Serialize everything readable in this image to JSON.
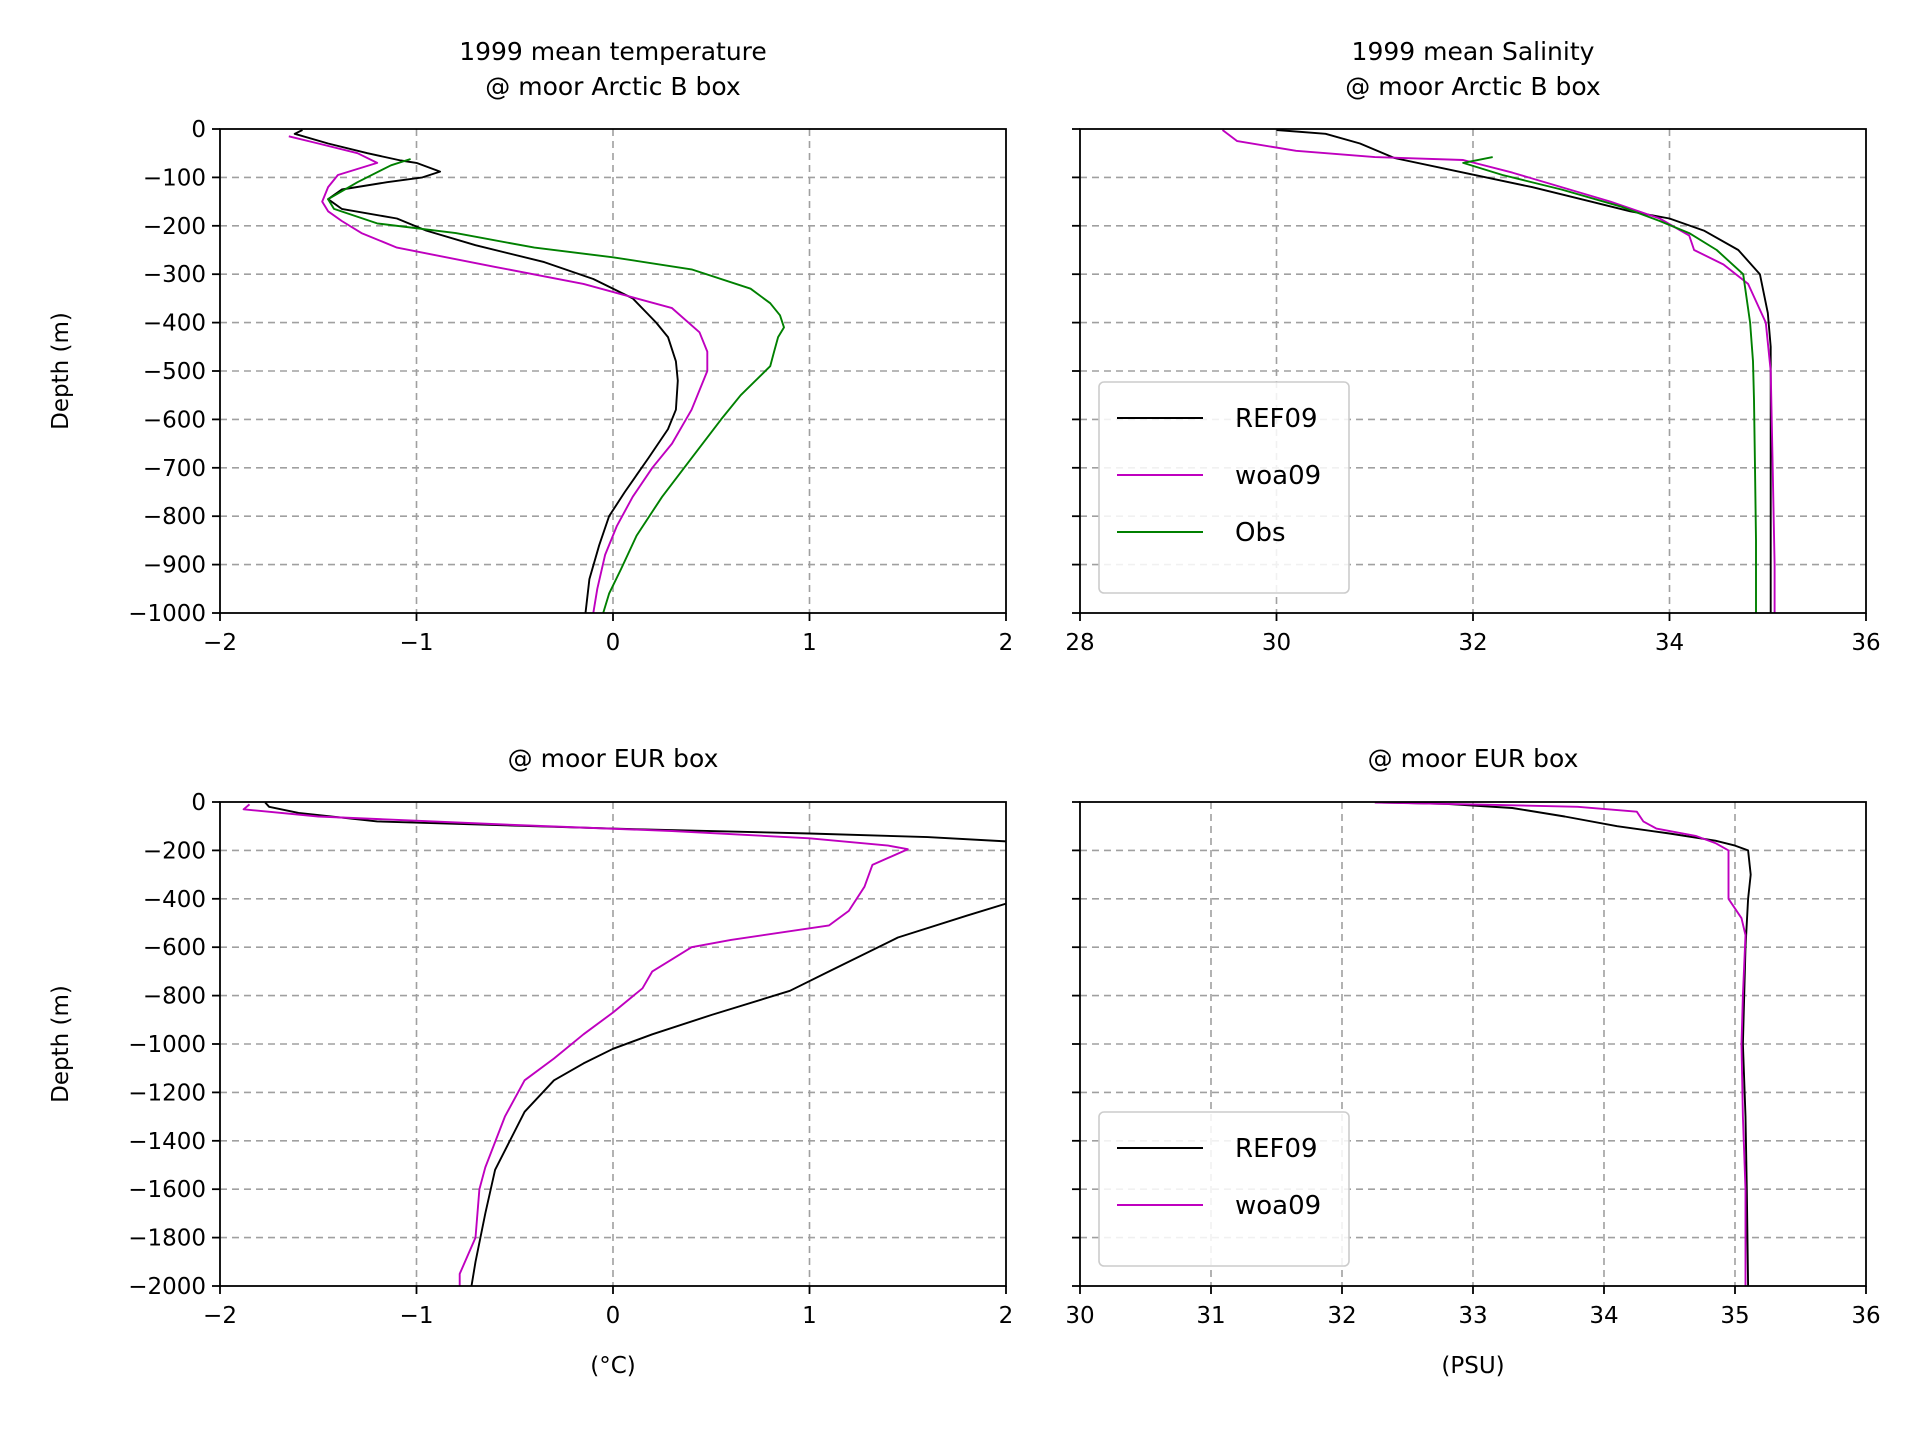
{
  "colors": {
    "REF09": "#000000",
    "woa09": "#bf00bf",
    "Obs": "#008000"
  },
  "chart_data": [
    {
      "id": "tl",
      "type": "line",
      "title_lines": [
        "1999 mean temperature",
        "@ moor Arctic B box"
      ],
      "xlabel": "",
      "ylabel": "Depth (m)",
      "xlim": [
        -2,
        2
      ],
      "ylim": [
        -1000,
        0
      ],
      "xticks": [
        -2,
        -1,
        0,
        1,
        2
      ],
      "yticks": [
        0,
        -100,
        -200,
        -300,
        -400,
        -500,
        -600,
        -700,
        -800,
        -900,
        -1000
      ],
      "grid": true,
      "series": [
        {
          "name": "REF09",
          "color": "#000000",
          "points": [
            [
              -1.58,
              -2
            ],
            [
              -1.62,
              -10
            ],
            [
              -1.45,
              -30
            ],
            [
              -1.25,
              -50
            ],
            [
              -1.08,
              -65
            ],
            [
              -1.0,
              -70
            ],
            [
              -0.88,
              -88
            ],
            [
              -0.97,
              -100
            ],
            [
              -1.15,
              -110
            ],
            [
              -1.38,
              -125
            ],
            [
              -1.45,
              -145
            ],
            [
              -1.38,
              -165
            ],
            [
              -1.1,
              -185
            ],
            [
              -0.95,
              -210
            ],
            [
              -0.7,
              -240
            ],
            [
              -0.35,
              -275
            ],
            [
              -0.1,
              -310
            ],
            [
              0.1,
              -350
            ],
            [
              0.22,
              -400
            ],
            [
              0.28,
              -430
            ],
            [
              0.32,
              -480
            ],
            [
              0.33,
              -520
            ],
            [
              0.32,
              -580
            ],
            [
              0.28,
              -620
            ],
            [
              0.18,
              -680
            ],
            [
              0.06,
              -750
            ],
            [
              -0.02,
              -800
            ],
            [
              -0.07,
              -860
            ],
            [
              -0.12,
              -930
            ],
            [
              -0.14,
              -1000
            ]
          ]
        },
        {
          "name": "woa09",
          "color": "#bf00bf",
          "points": [
            [
              -1.65,
              -15
            ],
            [
              -1.5,
              -30
            ],
            [
              -1.3,
              -50
            ],
            [
              -1.2,
              -70
            ],
            [
              -1.4,
              -95
            ],
            [
              -1.45,
              -120
            ],
            [
              -1.48,
              -150
            ],
            [
              -1.45,
              -170
            ],
            [
              -1.38,
              -190
            ],
            [
              -1.28,
              -215
            ],
            [
              -1.1,
              -245
            ],
            [
              -0.6,
              -285
            ],
            [
              -0.15,
              -320
            ],
            [
              0.3,
              -370
            ],
            [
              0.44,
              -420
            ],
            [
              0.48,
              -460
            ],
            [
              0.48,
              -500
            ],
            [
              0.4,
              -580
            ],
            [
              0.3,
              -650
            ],
            [
              0.2,
              -700
            ],
            [
              0.1,
              -760
            ],
            [
              0.02,
              -820
            ],
            [
              -0.04,
              -880
            ],
            [
              -0.08,
              -950
            ],
            [
              -0.1,
              -1000
            ]
          ]
        },
        {
          "name": "Obs",
          "color": "#008000",
          "points": [
            [
              -1.03,
              -62
            ],
            [
              -1.13,
              -75
            ],
            [
              -1.3,
              -110
            ],
            [
              -1.45,
              -145
            ],
            [
              -1.42,
              -165
            ],
            [
              -1.2,
              -195
            ],
            [
              -0.8,
              -215
            ],
            [
              -0.4,
              -245
            ],
            [
              0.0,
              -265
            ],
            [
              0.4,
              -290
            ],
            [
              0.7,
              -330
            ],
            [
              0.8,
              -360
            ],
            [
              0.85,
              -385
            ],
            [
              0.87,
              -410
            ],
            [
              0.84,
              -430
            ],
            [
              0.82,
              -460
            ],
            [
              0.8,
              -490
            ],
            [
              0.65,
              -550
            ],
            [
              0.55,
              -600
            ],
            [
              0.4,
              -680
            ],
            [
              0.25,
              -760
            ],
            [
              0.12,
              -840
            ],
            [
              0.04,
              -910
            ],
            [
              -0.02,
              -960
            ],
            [
              -0.05,
              -1000
            ]
          ]
        }
      ]
    },
    {
      "id": "tr",
      "type": "line",
      "title_lines": [
        "1999 mean Salinity",
        "@ moor Arctic B box"
      ],
      "xlabel": "",
      "ylabel": "",
      "xlim": [
        28,
        36
      ],
      "ylim": [
        -1000,
        0
      ],
      "xticks": [
        28,
        30,
        32,
        34,
        36
      ],
      "yticks": [
        0,
        -100,
        -200,
        -300,
        -400,
        -500,
        -600,
        -700,
        -800,
        -900,
        -1000
      ],
      "hide_ytick_labels": true,
      "grid": true,
      "legend": {
        "position": "lower-left",
        "entries": [
          "REF09",
          "woa09",
          "Obs"
        ]
      },
      "series": [
        {
          "name": "REF09",
          "color": "#000000",
          "points": [
            [
              30.0,
              -2
            ],
            [
              30.5,
              -10
            ],
            [
              30.85,
              -30
            ],
            [
              31.2,
              -60
            ],
            [
              31.9,
              -90
            ],
            [
              32.6,
              -120
            ],
            [
              33.2,
              -150
            ],
            [
              33.6,
              -170
            ],
            [
              34.0,
              -185
            ],
            [
              34.35,
              -210
            ],
            [
              34.7,
              -250
            ],
            [
              34.92,
              -300
            ],
            [
              35.0,
              -380
            ],
            [
              35.03,
              -450
            ],
            [
              35.03,
              -600
            ],
            [
              35.03,
              -800
            ],
            [
              35.03,
              -1000
            ]
          ]
        },
        {
          "name": "woa09",
          "color": "#bf00bf",
          "points": [
            [
              29.45,
              -2
            ],
            [
              29.6,
              -25
            ],
            [
              30.2,
              -45
            ],
            [
              31.0,
              -58
            ],
            [
              31.9,
              -64
            ],
            [
              32.4,
              -90
            ],
            [
              32.9,
              -120
            ],
            [
              33.4,
              -150
            ],
            [
              33.9,
              -185
            ],
            [
              34.2,
              -220
            ],
            [
              34.25,
              -250
            ],
            [
              34.55,
              -280
            ],
            [
              34.8,
              -320
            ],
            [
              34.98,
              -400
            ],
            [
              35.03,
              -500
            ],
            [
              35.05,
              -700
            ],
            [
              35.07,
              -900
            ],
            [
              35.07,
              -1000
            ]
          ]
        },
        {
          "name": "Obs",
          "color": "#008000",
          "points": [
            [
              32.2,
              -58
            ],
            [
              31.9,
              -70
            ],
            [
              32.3,
              -95
            ],
            [
              32.9,
              -125
            ],
            [
              33.5,
              -160
            ],
            [
              33.9,
              -190
            ],
            [
              34.2,
              -215
            ],
            [
              34.48,
              -250
            ],
            [
              34.75,
              -300
            ],
            [
              34.82,
              -400
            ],
            [
              34.85,
              -480
            ],
            [
              34.86,
              -560
            ],
            [
              34.87,
              -700
            ],
            [
              34.88,
              -850
            ],
            [
              34.88,
              -1000
            ]
          ]
        }
      ]
    },
    {
      "id": "bl",
      "type": "line",
      "title_lines": [
        "@ moor EUR box"
      ],
      "xlabel": "(°C)",
      "ylabel": "Depth (m)",
      "xlim": [
        -2,
        2
      ],
      "ylim": [
        -2000,
        0
      ],
      "xticks": [
        -2,
        -1,
        0,
        1,
        2
      ],
      "yticks": [
        0,
        -200,
        -400,
        -600,
        -800,
        -1000,
        -1200,
        -1400,
        -1600,
        -1800,
        -2000
      ],
      "grid": true,
      "series": [
        {
          "name": "REF09",
          "color": "#000000",
          "points": [
            [
              -1.77,
              -2
            ],
            [
              -1.75,
              -20
            ],
            [
              -1.6,
              -45
            ],
            [
              -1.2,
              -80
            ],
            [
              0.0,
              -110
            ],
            [
              1.0,
              -130
            ],
            [
              1.6,
              -145
            ],
            [
              2.05,
              -165
            ],
            [
              2.1,
              -350
            ],
            [
              2.0,
              -420
            ],
            [
              1.8,
              -470
            ],
            [
              1.45,
              -560
            ],
            [
              1.1,
              -700
            ],
            [
              0.9,
              -780
            ],
            [
              0.5,
              -880
            ],
            [
              0.2,
              -960
            ],
            [
              0.0,
              -1020
            ],
            [
              -0.15,
              -1080
            ],
            [
              -0.3,
              -1150
            ],
            [
              -0.45,
              -1280
            ],
            [
              -0.6,
              -1520
            ],
            [
              -0.65,
              -1700
            ],
            [
              -0.7,
              -1900
            ],
            [
              -0.72,
              -2000
            ]
          ]
        },
        {
          "name": "woa09",
          "color": "#bf00bf",
          "points": [
            [
              -1.85,
              -10
            ],
            [
              -1.88,
              -30
            ],
            [
              -1.5,
              -60
            ],
            [
              -0.5,
              -95
            ],
            [
              0.3,
              -120
            ],
            [
              1.0,
              -150
            ],
            [
              1.4,
              -180
            ],
            [
              1.5,
              -195
            ],
            [
              1.32,
              -260
            ],
            [
              1.28,
              -350
            ],
            [
              1.2,
              -450
            ],
            [
              1.1,
              -510
            ],
            [
              0.6,
              -570
            ],
            [
              0.4,
              -600
            ],
            [
              0.3,
              -650
            ],
            [
              0.2,
              -700
            ],
            [
              0.15,
              -770
            ],
            [
              0.0,
              -870
            ],
            [
              -0.15,
              -960
            ],
            [
              -0.3,
              -1060
            ],
            [
              -0.45,
              -1150
            ],
            [
              -0.55,
              -1300
            ],
            [
              -0.65,
              -1510
            ],
            [
              -0.68,
              -1600
            ],
            [
              -0.7,
              -1800
            ],
            [
              -0.78,
              -1950
            ],
            [
              -0.78,
              -2000
            ]
          ]
        }
      ]
    },
    {
      "id": "br",
      "type": "line",
      "title_lines": [
        "@ moor EUR box"
      ],
      "xlabel": "(PSU)",
      "ylabel": "",
      "xlim": [
        30,
        36
      ],
      "ylim": [
        -2000,
        0
      ],
      "xticks": [
        30,
        31,
        32,
        33,
        34,
        35,
        36
      ],
      "yticks": [
        0,
        -200,
        -400,
        -600,
        -800,
        -1000,
        -1200,
        -1400,
        -1600,
        -1800,
        -2000
      ],
      "hide_ytick_labels": true,
      "grid": true,
      "legend": {
        "position": "lower-left",
        "entries": [
          "REF09",
          "woa09"
        ]
      },
      "series": [
        {
          "name": "REF09",
          "color": "#000000",
          "points": [
            [
              32.3,
              -2
            ],
            [
              32.8,
              -8
            ],
            [
              33.3,
              -25
            ],
            [
              33.7,
              -60
            ],
            [
              34.1,
              -100
            ],
            [
              34.5,
              -130
            ],
            [
              34.85,
              -160
            ],
            [
              35.0,
              -180
            ],
            [
              35.1,
              -200
            ],
            [
              35.12,
              -300
            ],
            [
              35.1,
              -400
            ],
            [
              35.08,
              -600
            ],
            [
              35.06,
              -1000
            ],
            [
              35.08,
              -1300
            ],
            [
              35.09,
              -1600
            ],
            [
              35.1,
              -2000
            ]
          ]
        },
        {
          "name": "woa09",
          "color": "#bf00bf",
          "points": [
            [
              32.25,
              -2
            ],
            [
              33.0,
              -10
            ],
            [
              33.8,
              -20
            ],
            [
              34.25,
              -40
            ],
            [
              34.3,
              -80
            ],
            [
              34.4,
              -110
            ],
            [
              34.7,
              -140
            ],
            [
              34.85,
              -170
            ],
            [
              34.95,
              -200
            ],
            [
              34.95,
              -300
            ],
            [
              34.95,
              -400
            ],
            [
              35.05,
              -480
            ],
            [
              35.08,
              -550
            ],
            [
              35.06,
              -800
            ],
            [
              35.05,
              -1000
            ],
            [
              35.06,
              -1300
            ],
            [
              35.08,
              -1600
            ],
            [
              35.08,
              -2000
            ]
          ]
        }
      ]
    }
  ]
}
